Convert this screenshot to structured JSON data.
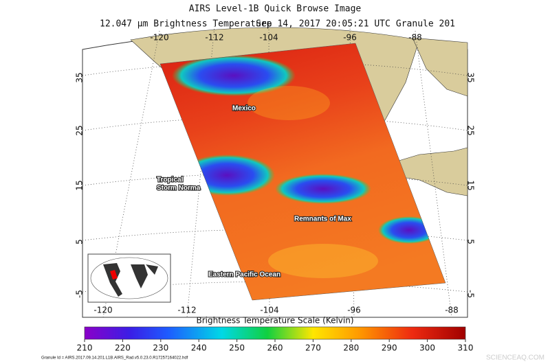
{
  "header": {
    "title": "AIRS Level-1B Quick Browse Image",
    "subtitle_parts": [
      "12.047 µm Brightness Temperature",
      "Sep 14, 2017 20:05:21 UTC",
      "Granule 201"
    ]
  },
  "map": {
    "top_longitudes": [
      -120,
      -112,
      -104,
      -96,
      -88
    ],
    "bottom_longitudes": [
      -120,
      -112,
      -104,
      -96,
      -88
    ],
    "left_latitudes": [
      35,
      25,
      15,
      5,
      -5
    ],
    "right_latitudes": [
      35,
      25,
      15,
      5,
      -5
    ],
    "annotations": {
      "mexico": "Mexico",
      "norma": [
        "Tropical",
        "Storm Norma"
      ],
      "max": "Remnants of Max",
      "ocean": "Eastern Pacific Ocean"
    }
  },
  "colorbar": {
    "title": "Brightness Temperature Scale (Kelvin)",
    "ticks": [
      210,
      220,
      230,
      240,
      250,
      260,
      270,
      280,
      290,
      300,
      310
    ]
  },
  "footer": {
    "granule_id": "Granule Id = AIRS.2017.09.14.201.L1B.AIRS_Rad.v5.0.23.0.R17257164022.hdf",
    "watermark": "SCIENCEAQ.COM"
  }
}
